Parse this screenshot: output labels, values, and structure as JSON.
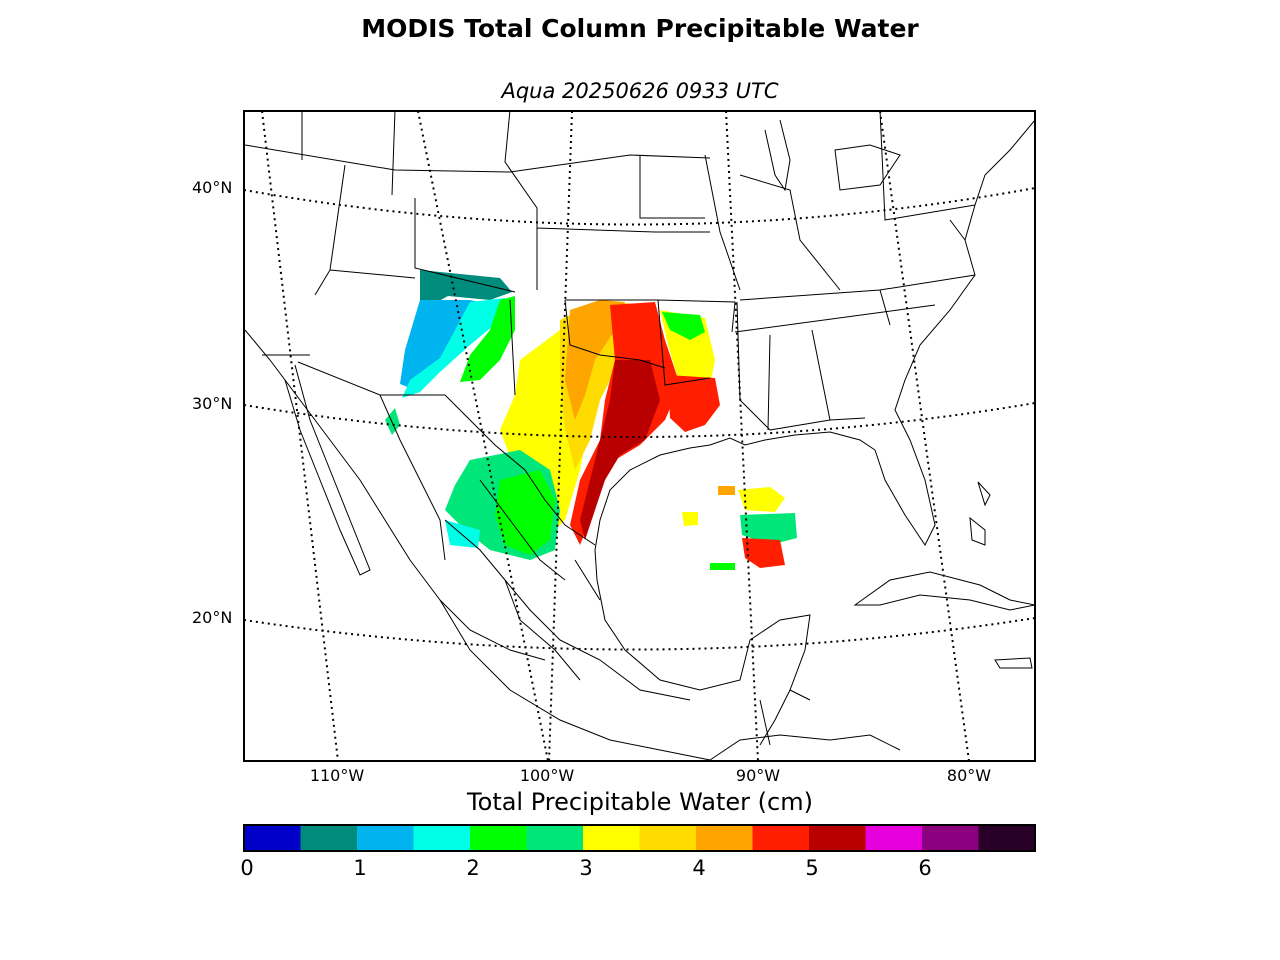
{
  "title": "MODIS Total Column Precipitable Water",
  "subtitle": "Aqua 20250626 0933 UTC",
  "map": {
    "projection": "lambert-conformal",
    "lat_labels": [
      "40°N",
      "30°N",
      "20°N"
    ],
    "lon_labels": [
      "110°W",
      "100°W",
      "90°W",
      "80°W"
    ],
    "graticule_style": "dotted",
    "features": [
      "coastlines",
      "country-borders",
      "us-state-borders",
      "mexican-state-borders"
    ]
  },
  "colorbar": {
    "label": "Total Precipitable Water (cm)",
    "tick_labels": [
      "0",
      "1",
      "2",
      "3",
      "4",
      "5",
      "6"
    ],
    "colors": [
      "#0000c8",
      "#008c7c",
      "#00b4f0",
      "#00ffe6",
      "#00ff00",
      "#00e678",
      "#ffff00",
      "#ffdc00",
      "#ffa500",
      "#ff1e00",
      "#b90000",
      "#e600dc",
      "#8c0080",
      "#280028"
    ]
  }
}
